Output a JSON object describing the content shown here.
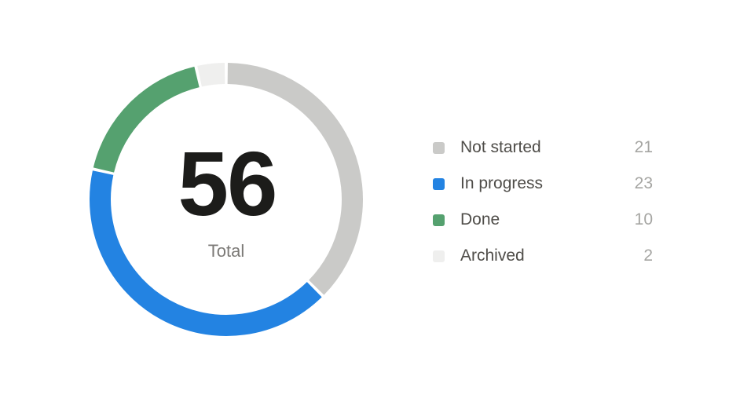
{
  "chart_data": {
    "type": "pie",
    "variant": "donut",
    "center_value": "56",
    "center_label": "Total",
    "total": 56,
    "start_angle_deg": 0,
    "direction": "clockwise",
    "legend_position": "right",
    "background_color": "#ffffff",
    "segments": [
      {
        "label": "Not started",
        "value": 21,
        "color": "#cacac8"
      },
      {
        "label": "In progress",
        "value": 23,
        "color": "#2383e2"
      },
      {
        "label": "Done",
        "value": 10,
        "color": "#55a16f"
      },
      {
        "label": "Archived",
        "value": 2,
        "color": "#efefee"
      }
    ]
  }
}
